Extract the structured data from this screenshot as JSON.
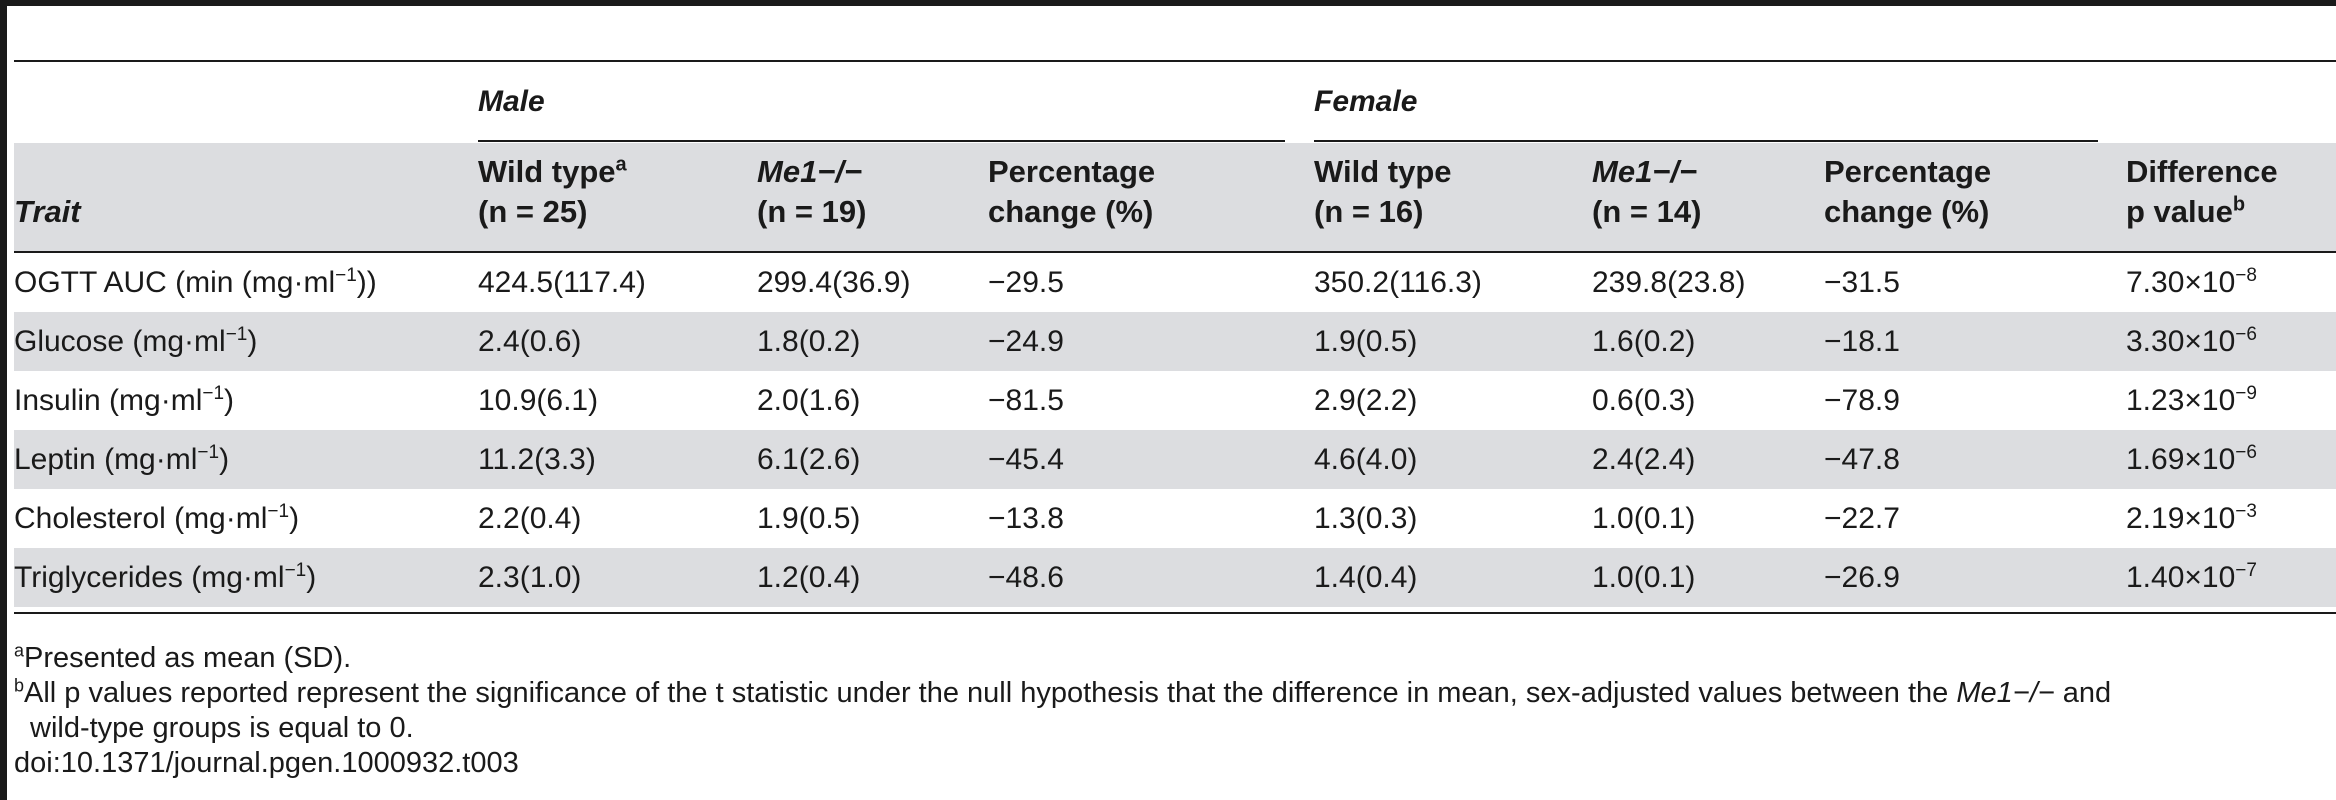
{
  "table": {
    "groups": {
      "male": "Male",
      "female": "Female"
    },
    "trait_header": "Trait",
    "columns": {
      "wt_male": {
        "line1": "Wild type",
        "sup": "a",
        "line2": "(n = 25)"
      },
      "me1_male": {
        "line1": "Me1−/−",
        "line2": "(n = 19)"
      },
      "pct_male": {
        "line1": "Percentage",
        "line2": "change (%)"
      },
      "wt_female": {
        "line1": "Wild type",
        "line2": "(n = 16)"
      },
      "me1_female": {
        "line1": "Me1−/−",
        "line2": "(n = 14)"
      },
      "pct_female": {
        "line1": "Percentage",
        "line2": "change (%)"
      },
      "pval": {
        "line1": "Difference",
        "line2": "p value",
        "sup": "b"
      }
    },
    "rows": [
      {
        "trait": "OGTT AUC (min (mg·ml",
        "trait_exp": "−1",
        "trait_tail": "))",
        "wt_m": "424.5(117.4)",
        "me1_m": "299.4(36.9)",
        "pct_m": "−29.5",
        "wt_f": "350.2(116.3)",
        "me1_f": "239.8(23.8)",
        "pct_f": "−31.5",
        "p_base": "7.30×10",
        "p_exp": "−8"
      },
      {
        "trait": "Glucose (mg·ml",
        "trait_exp": "−1",
        "trait_tail": ")",
        "wt_m": "2.4(0.6)",
        "me1_m": "1.8(0.2)",
        "pct_m": "−24.9",
        "wt_f": "1.9(0.5)",
        "me1_f": "1.6(0.2)",
        "pct_f": "−18.1",
        "p_base": "3.30×10",
        "p_exp": "−6"
      },
      {
        "trait": "Insulin (mg·ml",
        "trait_exp": "−1",
        "trait_tail": ")",
        "wt_m": "10.9(6.1)",
        "me1_m": "2.0(1.6)",
        "pct_m": "−81.5",
        "wt_f": "2.9(2.2)",
        "me1_f": "0.6(0.3)",
        "pct_f": "−78.9",
        "p_base": "1.23×10",
        "p_exp": "−9"
      },
      {
        "trait": "Leptin (mg·ml",
        "trait_exp": "−1",
        "trait_tail": ")",
        "wt_m": "11.2(3.3)",
        "me1_m": "6.1(2.6)",
        "pct_m": "−45.4",
        "wt_f": "4.6(4.0)",
        "me1_f": "2.4(2.4)",
        "pct_f": "−47.8",
        "p_base": "1.69×10",
        "p_exp": "−6"
      },
      {
        "trait": "Cholesterol (mg·ml",
        "trait_exp": "−1",
        "trait_tail": ")",
        "wt_m": "2.2(0.4)",
        "me1_m": "1.9(0.5)",
        "pct_m": "−13.8",
        "wt_f": "1.3(0.3)",
        "me1_f": "1.0(0.1)",
        "pct_f": "−22.7",
        "p_base": "2.19×10",
        "p_exp": "−3"
      },
      {
        "trait": "Triglycerides (mg·ml",
        "trait_exp": "−1",
        "trait_tail": ")",
        "wt_m": "2.3(1.0)",
        "me1_m": "1.2(0.4)",
        "pct_m": "−48.6",
        "wt_f": "1.4(0.4)",
        "me1_f": "1.0(0.1)",
        "pct_f": "−26.9",
        "p_base": "1.40×10",
        "p_exp": "−7"
      }
    ]
  },
  "footnotes": {
    "a": {
      "mark": "a",
      "text": "Presented as mean (SD)."
    },
    "b": {
      "mark": "b",
      "text1": "All p values reported represent the significance of the t statistic under the null hypothesis that the difference in mean, sex-adjusted values between the ",
      "italic": "Me1−/−",
      "text2": " and",
      "cont": "wild-type groups is equal to 0."
    },
    "doi": "doi:10.1371/journal.pgen.1000932.t003"
  }
}
